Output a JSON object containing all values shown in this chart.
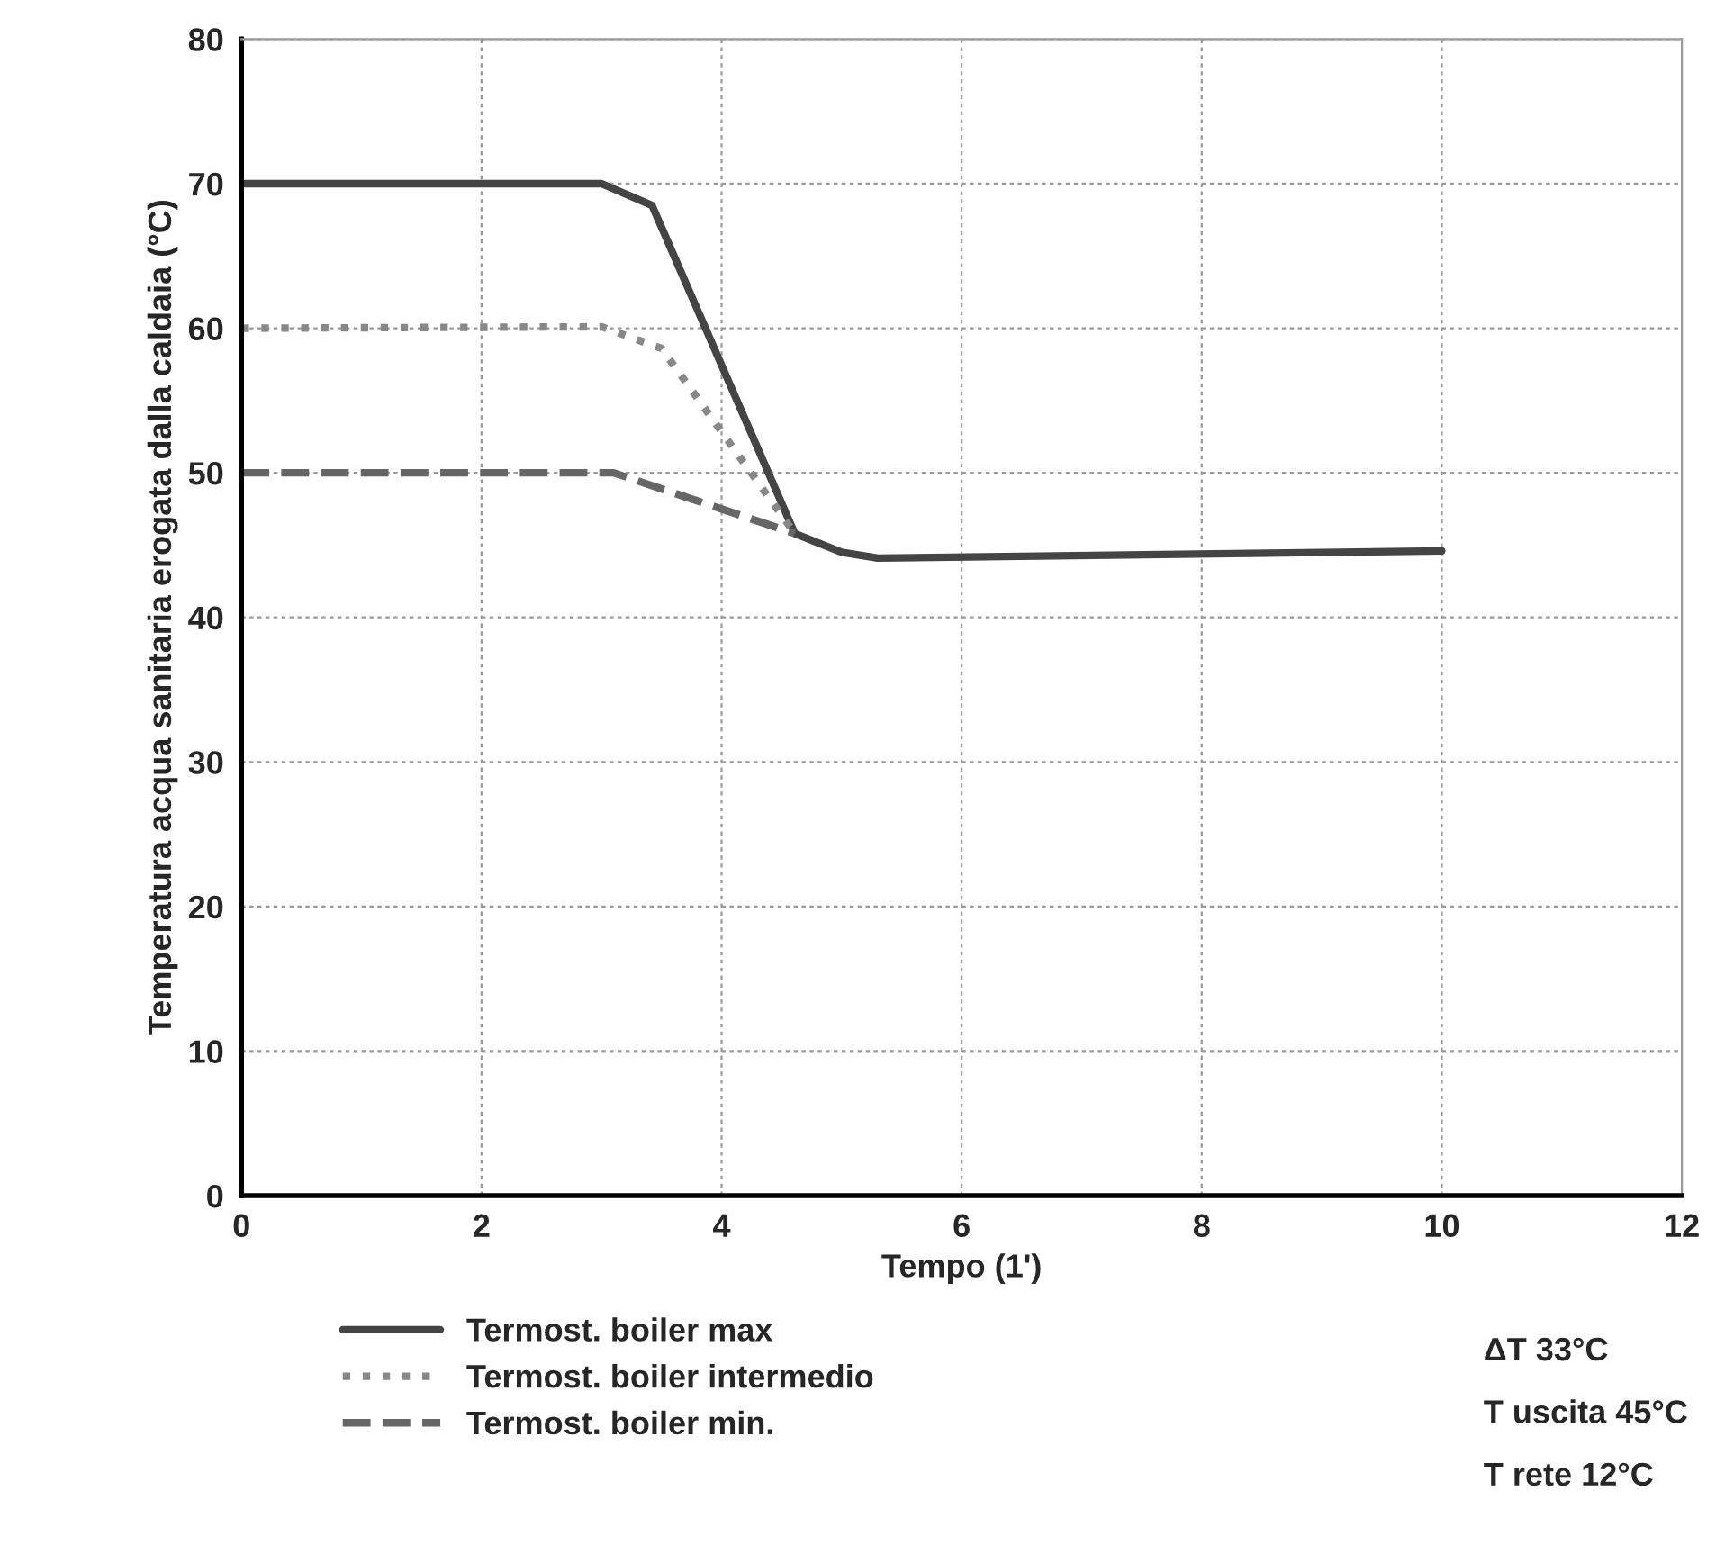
{
  "chart_data": {
    "type": "line",
    "xlabel": "Tempo (1')",
    "ylabel": "Temperatura acqua sanitaria erogata dalla caldaia (°C)",
    "xlim": [
      0,
      12
    ],
    "xticks": [
      0,
      2,
      4,
      6,
      8,
      10,
      12
    ],
    "ylim": [
      0,
      80
    ],
    "yticks": [
      0,
      10,
      20,
      30,
      40,
      50,
      60,
      70,
      80
    ],
    "grid": true,
    "legend": "bottom",
    "series": [
      {
        "name": "Termost. boiler max",
        "color": "#444444",
        "line_style": "solid",
        "x": [
          0,
          3,
          3.42,
          4.61,
          5.0,
          5.3,
          10
        ],
        "values": [
          70,
          70,
          68.5,
          45.8,
          44.5,
          44.1,
          44.6
        ]
      },
      {
        "name": "Termost. boiler intermedio",
        "color": "#888888",
        "line_style": "dotted",
        "x": [
          0,
          3,
          3.5,
          4.61
        ],
        "values": [
          60,
          60.1,
          58.6,
          45.8
        ]
      },
      {
        "name": "Termost. boiler min.",
        "color": "#666666",
        "line_style": "dashed",
        "x": [
          0,
          3.1,
          4.61
        ],
        "values": [
          50,
          50,
          45.8
        ]
      }
    ],
    "annotations": [
      "ΔT 33°C",
      "T uscita 45°C",
      "T rete 12°C"
    ]
  }
}
